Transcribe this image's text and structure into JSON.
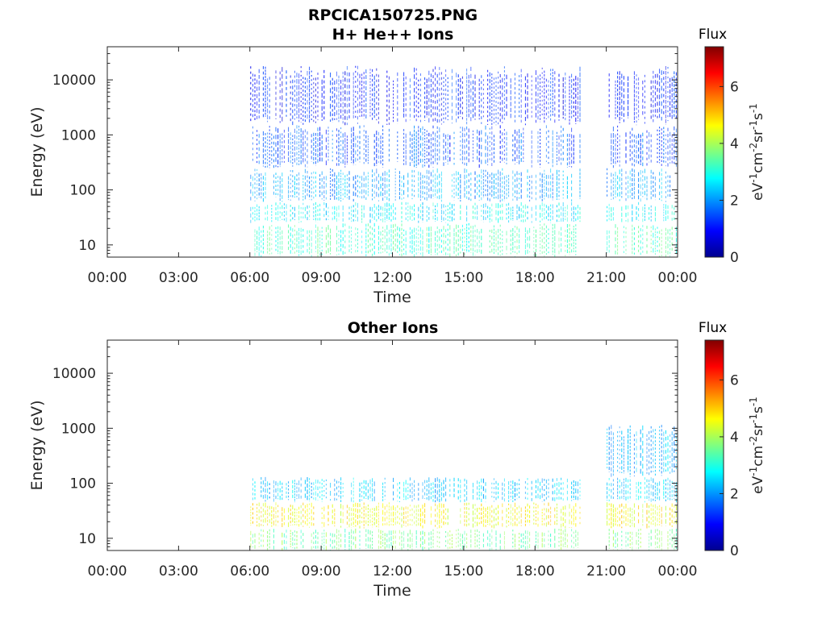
{
  "figure_title": "RPCICA150725.PNG",
  "chart_data": [
    {
      "type": "heatmap",
      "title": "H+ He++ Ions",
      "xlabel": "Time",
      "ylabel": "Energy (eV)",
      "x_ticks": [
        "00:00",
        "03:00",
        "06:00",
        "09:00",
        "12:00",
        "15:00",
        "18:00",
        "21:00",
        "00:00"
      ],
      "x_range_hours": [
        0,
        24
      ],
      "y_scale": "log",
      "y_ticks": [
        10,
        100,
        1000,
        10000
      ],
      "y_tick_labels": [
        "10",
        "100",
        "1000",
        "10000"
      ],
      "ylim": [
        6,
        40000
      ],
      "colorbar": {
        "title": "Flux",
        "unit": "eV-1cm-2sr-1s-1",
        "ticks": [
          0,
          2,
          4,
          6
        ],
        "range": [
          0,
          7.4
        ],
        "colormap": "jet"
      },
      "data_intervals_hours": [
        [
          6.0,
          19.95
        ],
        [
          21.0,
          24.0
        ]
      ],
      "bands": [
        {
          "e_min": 6,
          "e_max": 25,
          "flux": 3.2
        },
        {
          "e_min": 25,
          "e_max": 60,
          "flux": 2.7
        },
        {
          "e_min": 60,
          "e_max": 250,
          "flux": 2.1
        },
        {
          "e_min": 250,
          "e_max": 1500,
          "flux": 1.5
        },
        {
          "e_min": 1500,
          "e_max": 18000,
          "flux": 1.1
        }
      ]
    },
    {
      "type": "heatmap",
      "title": "Other Ions",
      "xlabel": "Time",
      "ylabel": "Energy (eV)",
      "x_ticks": [
        "00:00",
        "03:00",
        "06:00",
        "09:00",
        "12:00",
        "15:00",
        "18:00",
        "21:00",
        "00:00"
      ],
      "x_range_hours": [
        0,
        24
      ],
      "y_scale": "log",
      "y_ticks": [
        10,
        100,
        1000,
        10000
      ],
      "y_tick_labels": [
        "10",
        "100",
        "1000",
        "10000"
      ],
      "ylim": [
        6,
        40000
      ],
      "colorbar": {
        "title": "Flux",
        "unit": "eV-1cm-2sr-1s-1",
        "ticks": [
          0,
          2,
          4,
          6
        ],
        "range": [
          0,
          7.4
        ],
        "colormap": "jet"
      },
      "data_intervals_hours": [
        [
          6.0,
          19.95
        ],
        [
          21.0,
          24.0
        ]
      ],
      "bands": [
        {
          "e_min": 6,
          "e_max": 15,
          "flux": 3.6
        },
        {
          "e_min": 15,
          "e_max": 45,
          "flux": 4.6
        },
        {
          "e_min": 45,
          "e_max": 130,
          "flux": 2.4
        },
        {
          "e_min": 130,
          "e_max": 1200,
          "flux": 2.2,
          "from_hour": 21.0
        }
      ]
    }
  ]
}
